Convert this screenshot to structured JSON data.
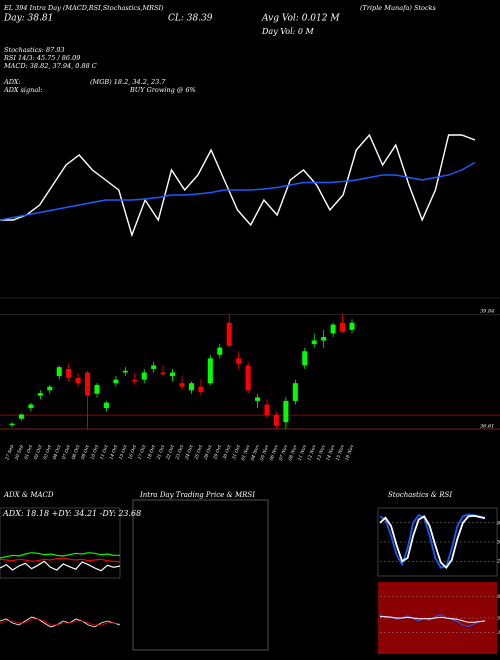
{
  "header": {
    "lines": [
      "EL 394 Intra Day (MACD,RSI,Stochastics,MRSI)",
      "CL: 38.39",
      "(Triple Munafa) Stocks",
      "Day: 38.81",
      "Avg Vol: 0.012 M",
      "Day Vol: 0 M",
      "Stochastics: 87.93",
      "RSI 14/3: 45.75 / 86.09",
      "MACD: 38.82, 37.94, 0.88 C",
      "ADX:",
      "(MGB) 18.2, 34.2, 23.7",
      "ADX signal:",
      "BUY Growing @ 6%"
    ]
  },
  "chart_data": [
    {
      "type": "line",
      "series": [
        {
          "color": "#ffffff",
          "values": [
            38.2,
            38.2,
            38.3,
            38.5,
            38.9,
            39.3,
            39.5,
            39.2,
            39.0,
            38.8,
            37.9,
            38.6,
            38.2,
            39.2,
            38.8,
            39.1,
            39.6,
            39.0,
            38.4,
            38.1,
            38.6,
            38.3,
            39.0,
            39.2,
            38.9,
            38.4,
            38.7,
            39.6,
            39.9,
            39.3,
            39.7,
            38.9,
            38.2,
            38.8,
            39.9,
            39.9,
            39.8
          ]
        },
        {
          "color": "#1e5bff",
          "values": [
            38.2,
            38.25,
            38.3,
            38.35,
            38.4,
            38.45,
            38.5,
            38.55,
            38.6,
            38.6,
            38.6,
            38.62,
            38.65,
            38.7,
            38.7,
            38.72,
            38.75,
            38.8,
            38.8,
            38.8,
            38.82,
            38.85,
            38.9,
            38.95,
            38.95,
            38.95,
            38.97,
            39.0,
            39.05,
            39.1,
            39.1,
            39.05,
            39.0,
            39.05,
            39.1,
            39.2,
            39.35
          ]
        }
      ]
    },
    {
      "type": "candlestick",
      "up_color": "#00ff00",
      "down_color": "#ff0000",
      "categories": [
        "27 Sep",
        "30 Sep",
        "01 Oct",
        "02 Oct",
        "03 Oct",
        "04 Oct",
        "07 Oct",
        "08 Oct",
        "09 Oct",
        "10 Oct",
        "11 Oct",
        "14 Oct",
        "15 Oct",
        "16 Oct",
        "17 Oct",
        "18 Oct",
        "21 Oct",
        "22 Oct",
        "23 Oct",
        "24 Oct",
        "25 Oct",
        "28 Oct",
        "29 Oct",
        "30 Oct",
        "31 Oct",
        "01 Nov",
        "04 Nov",
        "05 Nov",
        "06 Nov",
        "07 Nov",
        "08 Nov",
        "11 Nov",
        "12 Nov",
        "13 Nov",
        "14 Nov",
        "15 Nov",
        "18 Nov"
      ],
      "open": [
        36.72,
        36.9,
        37.2,
        37.55,
        37.7,
        38.1,
        38.3,
        38.05,
        38.2,
        37.6,
        37.2,
        37.9,
        38.2,
        38.0,
        38.0,
        38.3,
        38.2,
        38.1,
        37.9,
        37.7,
        37.8,
        37.9,
        38.7,
        39.6,
        38.6,
        38.4,
        37.4,
        37.3,
        37.0,
        36.8,
        37.4,
        38.4,
        39.0,
        39.1,
        39.3,
        39.6,
        39.4
      ],
      "high": [
        36.8,
        37.05,
        37.35,
        37.7,
        37.85,
        38.4,
        38.45,
        38.2,
        38.25,
        37.9,
        37.4,
        38.1,
        38.35,
        38.2,
        38.3,
        38.5,
        38.4,
        38.3,
        38.1,
        37.95,
        38.0,
        38.7,
        39.0,
        39.84,
        38.8,
        38.5,
        37.6,
        37.45,
        37.1,
        37.5,
        38.0,
        38.9,
        39.3,
        39.4,
        39.6,
        39.84,
        39.7
      ],
      "low": [
        36.66,
        36.85,
        37.1,
        37.45,
        37.6,
        38.0,
        37.95,
        37.8,
        36.62,
        37.5,
        37.1,
        37.8,
        38.1,
        37.85,
        37.9,
        38.2,
        38.1,
        37.95,
        37.7,
        37.6,
        37.55,
        37.85,
        38.6,
        38.9,
        38.3,
        37.6,
        37.2,
        36.9,
        36.61,
        36.61,
        37.3,
        38.3,
        38.9,
        38.9,
        39.2,
        39.3,
        39.3
      ],
      "close": [
        36.76,
        37.02,
        37.3,
        37.62,
        37.8,
        38.35,
        38.05,
        37.9,
        37.55,
        37.85,
        37.35,
        38.0,
        38.25,
        37.95,
        38.2,
        38.4,
        38.15,
        38.2,
        37.8,
        37.9,
        37.65,
        38.6,
        38.9,
        38.95,
        38.45,
        37.7,
        37.5,
        37.0,
        36.7,
        37.4,
        37.9,
        38.8,
        39.1,
        39.2,
        39.55,
        39.35,
        39.6
      ],
      "ylim": [
        36.3,
        40.1
      ],
      "yticks": [
        39.84,
        36.61
      ],
      "hlines": [
        37.0,
        36.61
      ]
    },
    {
      "type": "line",
      "title": "ADX  & MACD",
      "subtitle": "ADX: 18.18  +DY: 34.21  -DY: 23.68",
      "ylim": [
        0,
        60
      ],
      "series": [
        {
          "color": "#00ff00",
          "values": [
            30,
            32,
            34,
            33,
            36,
            38,
            37,
            35,
            36,
            34,
            33,
            35,
            37,
            36,
            38,
            37,
            35,
            36,
            34,
            34
          ]
        },
        {
          "color": "#ff0000",
          "values": [
            28,
            27,
            26,
            28,
            27,
            25,
            26,
            28,
            27,
            29,
            30,
            28,
            27,
            28,
            26,
            27,
            28,
            26,
            25,
            24
          ]
        },
        {
          "color": "#ffffff",
          "values": [
            15,
            20,
            12,
            18,
            22,
            14,
            19,
            25,
            16,
            12,
            21,
            17,
            13,
            24,
            20,
            15,
            11,
            19,
            16,
            18
          ]
        }
      ]
    },
    {
      "type": "line",
      "ylim": [
        -1,
        1
      ],
      "series": [
        {
          "color": "#ffffff",
          "values": [
            0.2,
            0.3,
            0.1,
            0.0,
            0.2,
            0.4,
            0.3,
            0.1,
            -0.1,
            0.0,
            0.2,
            0.1,
            0.3,
            0.2,
            0.0,
            -0.1,
            0.1,
            0.2,
            0.1,
            0.0
          ]
        },
        {
          "color": "#ff0000",
          "values": [
            0.1,
            0.2,
            0.2,
            0.1,
            0.1,
            0.3,
            0.3,
            0.2,
            0.0,
            0.0,
            0.1,
            0.1,
            0.2,
            0.2,
            0.1,
            0.0,
            0.0,
            0.1,
            0.1,
            0.05
          ]
        }
      ]
    },
    {
      "type": "line",
      "title": "Intra Day Trading Price  & MRSI",
      "series": []
    },
    {
      "type": "line",
      "title": "Stochastics & RSI",
      "ylim": [
        0,
        100
      ],
      "yticks": [
        80,
        50,
        20
      ],
      "series": [
        {
          "color": "#1e5bff",
          "values": [
            90,
            85,
            60,
            30,
            15,
            40,
            80,
            92,
            88,
            60,
            25,
            10,
            12,
            40,
            75,
            90,
            93,
            92,
            90,
            88
          ]
        },
        {
          "color": "#ffffff",
          "values": [
            80,
            88,
            75,
            45,
            20,
            25,
            60,
            85,
            90,
            75,
            45,
            18,
            10,
            22,
            55,
            80,
            90,
            91,
            89,
            87
          ]
        }
      ]
    },
    {
      "type": "line",
      "ylim": [
        0,
        100
      ],
      "yticks": [
        80,
        50,
        30
      ],
      "background": "#8b0000",
      "series": [
        {
          "color": "#1e5bff",
          "values": [
            55,
            50,
            52,
            48,
            50,
            53,
            49,
            46,
            50,
            47,
            52,
            55,
            50,
            48,
            45,
            40,
            38,
            42,
            45,
            46
          ]
        },
        {
          "color": "#ffffff",
          "values": [
            52,
            52,
            51,
            50,
            50,
            51,
            50,
            49,
            49,
            49,
            50,
            51,
            50,
            49,
            48,
            46,
            44,
            44,
            45,
            46
          ]
        }
      ]
    }
  ]
}
